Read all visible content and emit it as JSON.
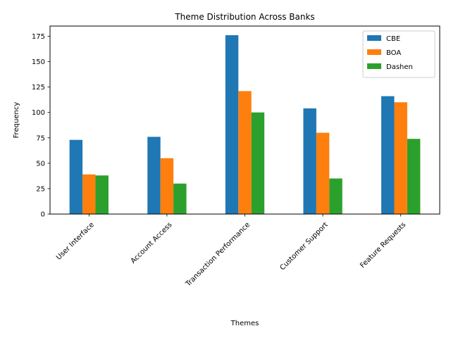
{
  "chart_data": {
    "type": "bar",
    "title": "Theme Distribution Across Banks",
    "xlabel": "Themes",
    "ylabel": "Frequency",
    "categories": [
      "User Interface",
      "Account Access",
      "Transaction Performance",
      "Customer Support",
      "Feature Requests"
    ],
    "series": [
      {
        "name": "CBE",
        "color": "#1f77b4",
        "values": [
          73,
          76,
          176,
          104,
          116
        ]
      },
      {
        "name": "BOA",
        "color": "#ff7f0e",
        "values": [
          39,
          55,
          121,
          80,
          110
        ]
      },
      {
        "name": "Dashen",
        "color": "#2ca02c",
        "values": [
          38,
          30,
          100,
          35,
          74
        ]
      }
    ],
    "ylim": [
      0,
      185
    ],
    "yticks": [
      0,
      25,
      50,
      75,
      100,
      125,
      150,
      175
    ],
    "grid": false,
    "legend_position": "top-right",
    "xtick_rotation": 45
  }
}
